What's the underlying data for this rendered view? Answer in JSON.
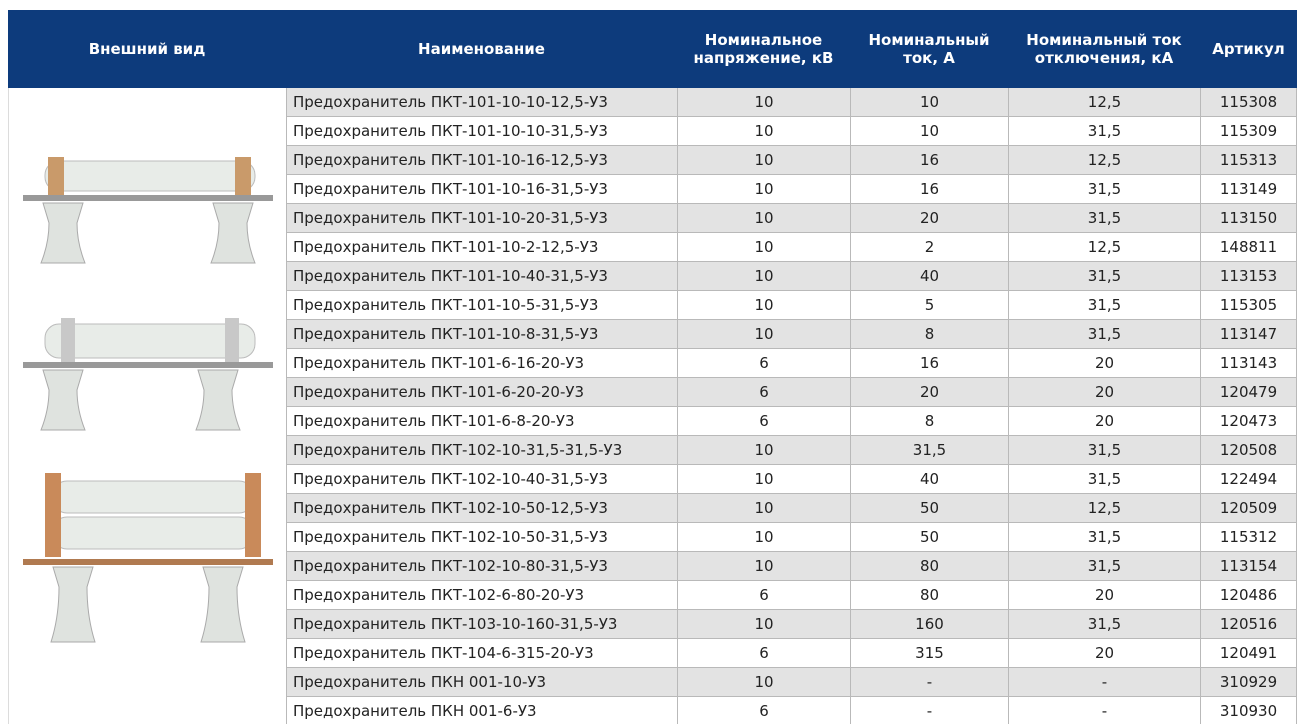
{
  "table": {
    "header": [
      "Внешний вид",
      "Наименование",
      "Номинальное напряжение, кВ",
      "Номинальный ток, А",
      "Номинальный ток отключения, кА",
      "Артикул"
    ],
    "rows": [
      [
        "Предохранитель ПКТ-101-10-10-12,5-У3",
        "10",
        "10",
        "12,5",
        "115308"
      ],
      [
        "Предохранитель ПКТ-101-10-10-31,5-У3",
        "10",
        "10",
        "31,5",
        "115309"
      ],
      [
        "Предохранитель ПКТ-101-10-16-12,5-У3",
        "10",
        "16",
        "12,5",
        "115313"
      ],
      [
        "Предохранитель ПКТ-101-10-16-31,5-У3",
        "10",
        "16",
        "31,5",
        "113149"
      ],
      [
        "Предохранитель ПКТ-101-10-20-31,5-У3",
        "10",
        "20",
        "31,5",
        "113150"
      ],
      [
        "Предохранитель ПКТ-101-10-2-12,5-У3",
        "10",
        "2",
        "12,5",
        "148811"
      ],
      [
        "Предохранитель ПКТ-101-10-40-31,5-У3",
        "10",
        "40",
        "31,5",
        "113153"
      ],
      [
        "Предохранитель ПКТ-101-10-5-31,5-У3",
        "10",
        "5",
        "31,5",
        "115305"
      ],
      [
        "Предохранитель ПКТ-101-10-8-31,5-У3",
        "10",
        "8",
        "31,5",
        "113147"
      ],
      [
        "Предохранитель ПКТ-101-6-16-20-У3",
        "6",
        "16",
        "20",
        "113143"
      ],
      [
        "Предохранитель ПКТ-101-6-20-20-У3",
        "6",
        "20",
        "20",
        "120479"
      ],
      [
        "Предохранитель ПКТ-101-6-8-20-У3",
        "6",
        "8",
        "20",
        "120473"
      ],
      [
        "Предохранитель ПКТ-102-10-31,5-31,5-У3",
        "10",
        "31,5",
        "31,5",
        "120508"
      ],
      [
        "Предохранитель ПКТ-102-10-40-31,5-У3",
        "10",
        "40",
        "31,5",
        "122494"
      ],
      [
        "Предохранитель ПКТ-102-10-50-12,5-У3",
        "10",
        "50",
        "12,5",
        "120509"
      ],
      [
        "Предохранитель ПКТ-102-10-50-31,5-У3",
        "10",
        "50",
        "31,5",
        "115312"
      ],
      [
        "Предохранитель ПКТ-102-10-80-31,5-У3",
        "10",
        "80",
        "31,5",
        "113154"
      ],
      [
        "Предохранитель ПКТ-102-6-80-20-У3",
        "6",
        "80",
        "20",
        "120486"
      ],
      [
        "Предохранитель ПКТ-103-10-160-31,5-У3",
        "10",
        "160",
        "31,5",
        "120516"
      ],
      [
        "Предохранитель ПКТ-104-6-315-20-У3",
        "6",
        "315",
        "20",
        "120491"
      ],
      [
        "Предохранитель ПКН 001-10-У3",
        "10",
        "-",
        "-",
        "310929"
      ],
      [
        "Предохранитель ПКН 001-6-У3",
        "6",
        "-",
        "-",
        "310930"
      ]
    ]
  }
}
